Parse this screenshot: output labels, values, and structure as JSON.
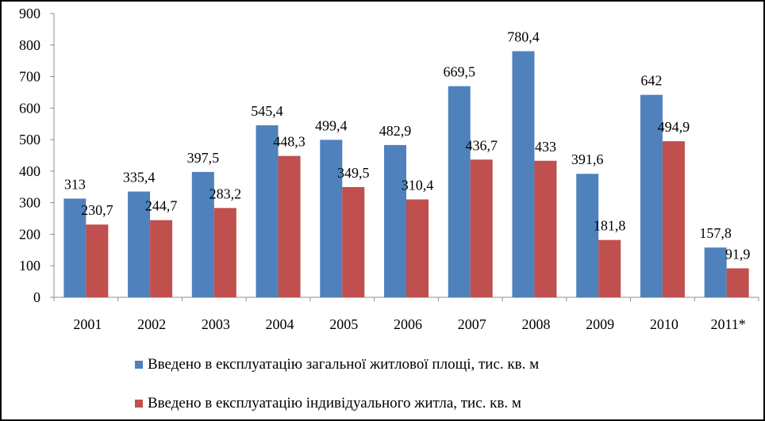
{
  "chart_data": {
    "type": "bar",
    "categories": [
      "2001",
      "2002",
      "2003",
      "2004",
      "2005",
      "2006",
      "2007",
      "2008",
      "2009",
      "2010",
      "2011*"
    ],
    "series": [
      {
        "name": "Введено в експлуатацію загальної житлової площі, тис. кв. м",
        "color": "#4F81BD",
        "values": [
          313,
          335.4,
          397.5,
          545.4,
          499.4,
          482.9,
          669.5,
          780.4,
          391.6,
          642,
          157.8
        ],
        "labels": [
          "313",
          "335,4",
          "397,5",
          "545,4",
          "499,4",
          "482,9",
          "669,5",
          "780,4",
          "391,6",
          "642",
          "157,8"
        ]
      },
      {
        "name": "Введено в експлуатацію індивідуального житла, тис. кв. м",
        "color": "#C0504D",
        "values": [
          230.7,
          244.7,
          283.2,
          448.3,
          349.5,
          310.4,
          436.7,
          433,
          181.8,
          494.9,
          91.9
        ],
        "labels": [
          "230,7",
          "244,7",
          "283,2",
          "448,3",
          "349,5",
          "310,4",
          "436,7",
          "433",
          "181,8",
          "494,9",
          "91,9"
        ]
      }
    ],
    "yticks": [
      0,
      100,
      200,
      300,
      400,
      500,
      600,
      700,
      800,
      900
    ],
    "ylim": [
      0,
      900
    ],
    "grid": false,
    "legend_position": "bottom",
    "title": "",
    "xlabel": "",
    "ylabel": ""
  }
}
